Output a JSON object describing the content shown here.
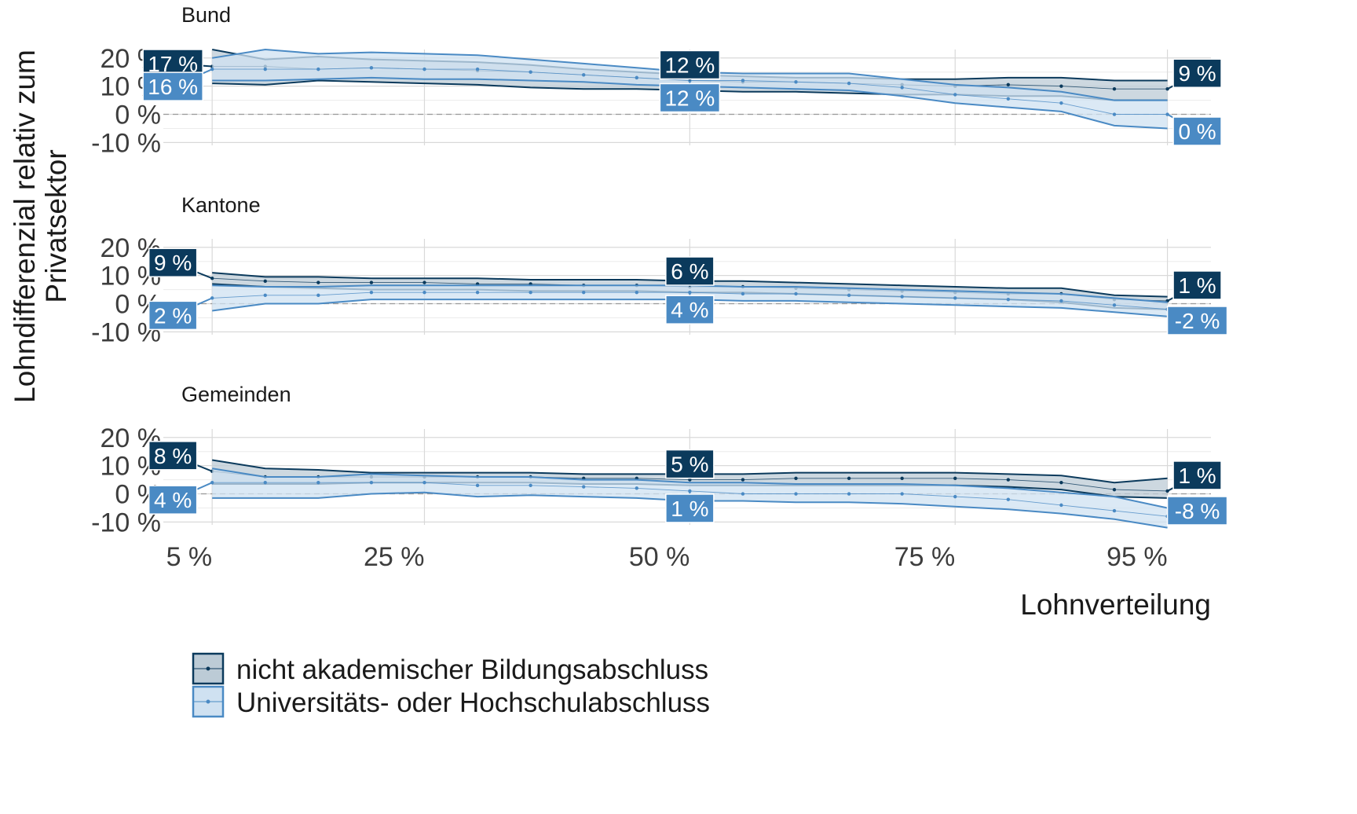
{
  "chart_data": {
    "type": "line",
    "subtype": "ribbon-line-facets",
    "ylabel": "Lohndifferenzial relativ zum Privatsektor",
    "xlabel": "Lohnverteilung",
    "x": [
      5,
      10,
      15,
      20,
      25,
      30,
      35,
      40,
      45,
      50,
      55,
      60,
      65,
      70,
      75,
      80,
      85,
      90,
      95
    ],
    "x_ticks": [
      5,
      25,
      50,
      75,
      95
    ],
    "x_tick_labels": [
      "5 %",
      "25 %",
      "50 %",
      "75 %",
      "95 %"
    ],
    "y_ticks": [
      -10,
      0,
      10,
      20
    ],
    "y_tick_labels": [
      "-10 %",
      "0 %",
      "10 %",
      "20 %"
    ],
    "ylim": [
      -11,
      23
    ],
    "grid": true,
    "legend_position": "bottom",
    "colors": {
      "nicht_akademisch_line": "#0b3a5c",
      "nicht_akademisch_fill": "#bccbd6",
      "universitaet_line": "#4a8ac4",
      "universitaet_fill": "#cfe1f1"
    },
    "legend": [
      {
        "key": "nicht_akademisch",
        "label": "nicht akademischer Bildungsabschluss"
      },
      {
        "key": "universitaet",
        "label": "Universitäts- oder Hochschulabschluss"
      }
    ],
    "panels": [
      {
        "title": "Bund",
        "series": [
          {
            "key": "nicht_akademisch",
            "values": [
              17,
              17,
              16,
              16.5,
              16,
              15.5,
              15,
              14,
              13,
              12,
              11.5,
              11.5,
              11,
              10.5,
              10,
              10.5,
              10,
              9,
              9
            ],
            "lower": [
              11,
              10.5,
              12,
              11.5,
              11,
              10.5,
              9.5,
              9,
              9,
              8.5,
              8,
              8,
              7.5,
              7,
              7,
              6.5,
              6.5,
              5,
              5
            ],
            "upper": [
              23,
              19.5,
              20.5,
              19.5,
              19,
              18.5,
              17.5,
              16,
              15,
              14,
              13.5,
              13,
              13,
              12.5,
              12.5,
              13,
              13,
              12,
              12
            ]
          },
          {
            "key": "universitaet",
            "values": [
              16,
              16,
              16,
              16.5,
              16,
              16,
              15,
              14,
              13,
              12,
              12,
              11.5,
              11,
              9.5,
              7,
              5.5,
              4,
              0,
              0
            ],
            "lower": [
              12,
              12,
              12.5,
              13,
              12.5,
              12.5,
              12,
              11.5,
              10.5,
              10,
              9.5,
              9,
              8.5,
              6.5,
              4,
              2.5,
              1,
              -4,
              -5
            ],
            "upper": [
              20,
              23,
              21.5,
              22,
              21.5,
              21,
              19.5,
              18,
              16.5,
              15,
              14.5,
              14.5,
              14.5,
              12.5,
              10.5,
              9.5,
              8,
              5,
              5
            ]
          }
        ],
        "labels": [
          {
            "series": "nicht_akademisch",
            "at": 5,
            "text": "17 %"
          },
          {
            "series": "universitaet",
            "at": 5,
            "text": "16 %"
          },
          {
            "series": "nicht_akademisch",
            "at": 50,
            "text": "12 %"
          },
          {
            "series": "universitaet",
            "at": 50,
            "text": "12 %"
          },
          {
            "series": "nicht_akademisch",
            "at": 95,
            "text": "9 %"
          },
          {
            "series": "universitaet",
            "at": 95,
            "text": "0 %"
          }
        ]
      },
      {
        "title": "Kantone",
        "series": [
          {
            "key": "nicht_akademisch",
            "values": [
              9,
              8,
              7.5,
              7.5,
              7.5,
              7,
              7,
              6.5,
              6.5,
              6,
              6,
              5.5,
              5,
              4.5,
              4,
              3.5,
              3.5,
              1.5,
              1
            ],
            "lower": [
              7,
              6,
              5.5,
              5,
              5,
              5,
              4.5,
              4.5,
              4.5,
              4,
              4,
              3.5,
              3,
              2.5,
              2,
              1.5,
              0.5,
              -1.5,
              -2
            ],
            "upper": [
              11,
              9.5,
              9.5,
              9,
              9,
              9,
              8.5,
              8.5,
              8.5,
              8,
              8,
              7.5,
              7,
              6.5,
              6,
              5.5,
              5.5,
              3,
              2.5
            ]
          },
          {
            "key": "universitaet",
            "values": [
              2,
              3,
              3,
              4,
              4,
              4,
              4,
              4,
              4,
              4,
              3.5,
              3.5,
              3,
              2.5,
              2,
              1.5,
              1,
              -0.5,
              -2
            ],
            "lower": [
              -2.5,
              0,
              0,
              1.5,
              1.5,
              1.5,
              1.5,
              1.5,
              1.5,
              1.5,
              1,
              1,
              0.5,
              0,
              -0.5,
              -1,
              -1.5,
              -3,
              -4.5
            ],
            "upper": [
              6.5,
              6,
              6,
              6.5,
              6.5,
              6.5,
              6.5,
              6.5,
              6.5,
              6.5,
              6,
              6,
              5.5,
              5,
              4.5,
              4,
              3.5,
              2,
              0.5
            ]
          }
        ],
        "labels": [
          {
            "series": "nicht_akademisch",
            "at": 5,
            "text": "9 %"
          },
          {
            "series": "universitaet",
            "at": 5,
            "text": "2 %"
          },
          {
            "series": "nicht_akademisch",
            "at": 50,
            "text": "6 %"
          },
          {
            "series": "universitaet",
            "at": 50,
            "text": "4 %"
          },
          {
            "series": "nicht_akademisch",
            "at": 95,
            "text": "1 %"
          },
          {
            "series": "universitaet",
            "at": 95,
            "text": "-2 %"
          }
        ]
      },
      {
        "title": "Gemeinden",
        "series": [
          {
            "key": "nicht_akademisch",
            "values": [
              8,
              6,
              6,
              6,
              6,
              6,
              6,
              5.5,
              5.5,
              5,
              5,
              5.5,
              5.5,
              5.5,
              5.5,
              5,
              4,
              1.5,
              1
            ],
            "lower": [
              3.5,
              3.5,
              3.5,
              4,
              4,
              4,
              4,
              3.5,
              3.5,
              3,
              3,
              3,
              3,
              3,
              3,
              2.5,
              1.5,
              -1,
              -1.5
            ],
            "upper": [
              12,
              9,
              8.5,
              7.5,
              7.5,
              7.5,
              7.5,
              7,
              7,
              7,
              7,
              7.5,
              7.5,
              7.5,
              7.5,
              7,
              6.5,
              4,
              5.5
            ]
          },
          {
            "key": "universitaet",
            "values": [
              4,
              4,
              4,
              4,
              4,
              3,
              3,
              2.5,
              2,
              1,
              0,
              0,
              0,
              0,
              -1,
              -2,
              -4,
              -6,
              -8
            ],
            "lower": [
              -1.5,
              -1.5,
              -1.5,
              0,
              0.5,
              -1,
              -0.5,
              -1,
              -1.5,
              -2.5,
              -2.5,
              -3,
              -3,
              -3.5,
              -4.5,
              -5.5,
              -7,
              -9,
              -12
            ],
            "upper": [
              9,
              6,
              6,
              7,
              6.5,
              6,
              6,
              5,
              5,
              4,
              4,
              3.5,
              3.5,
              3.5,
              3,
              2,
              0.5,
              -1,
              -5
            ]
          }
        ],
        "labels": [
          {
            "series": "nicht_akademisch",
            "at": 5,
            "text": "8 %"
          },
          {
            "series": "universitaet",
            "at": 5,
            "text": "4 %"
          },
          {
            "series": "nicht_akademisch",
            "at": 50,
            "text": "5 %"
          },
          {
            "series": "universitaet",
            "at": 50,
            "text": "1 %"
          },
          {
            "series": "nicht_akademisch",
            "at": 95,
            "text": "1 %"
          },
          {
            "series": "universitaet",
            "at": 95,
            "text": "-8 %"
          }
        ]
      }
    ]
  }
}
